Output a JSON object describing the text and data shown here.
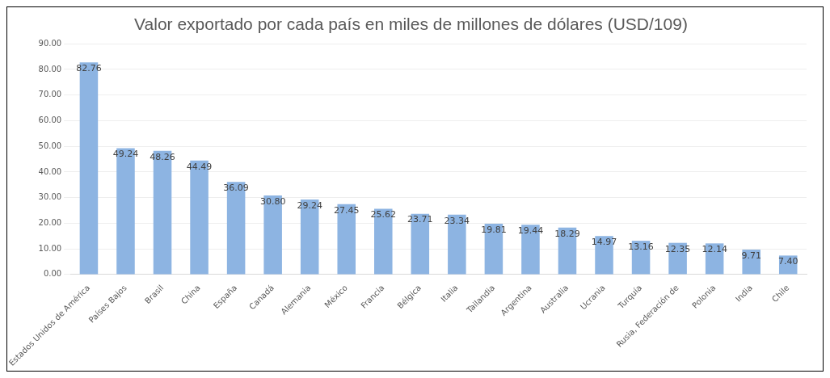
{
  "chart_data": {
    "type": "bar",
    "title": "Valor exportado por cada país en miles de millones de dólares (USD/109)",
    "categories": [
      "Estados Unidos de América",
      "Países Bajos",
      "Brasil",
      "China",
      "España",
      "Canadá",
      "Alemania",
      "México",
      "Francia",
      "Bélgica",
      "Italia",
      "Tailandia",
      "Argentina",
      "Australia",
      "Ucrania",
      "Turquía",
      "Rusia, Federación de",
      "Polonia",
      "India",
      "Chile"
    ],
    "values": [
      82.76,
      49.24,
      48.26,
      44.49,
      36.09,
      30.8,
      29.24,
      27.45,
      25.62,
      23.71,
      23.34,
      19.81,
      19.44,
      18.29,
      14.97,
      13.16,
      12.35,
      12.14,
      9.71,
      7.4
    ],
    "value_labels": [
      "82.76",
      "49.24",
      "48.26",
      "44.49",
      "36.09",
      "30.80",
      "29.24",
      "27.45",
      "25.62",
      "23.71",
      "23.34",
      "19.81",
      "19.44",
      "18.29",
      "14.97",
      "13.16",
      "12.35",
      "12.14",
      "9.71",
      "7.40"
    ],
    "color": "#8db4e2",
    "ylim": [
      0,
      90
    ],
    "yticks": [
      {
        "value": 0,
        "label": "0.00"
      },
      {
        "value": 10,
        "label": "10.00"
      },
      {
        "value": 20,
        "label": "20.00"
      },
      {
        "value": 30,
        "label": "30.00"
      },
      {
        "value": 40,
        "label": "40.00"
      },
      {
        "value": 50,
        "label": "50.00"
      },
      {
        "value": 60,
        "label": "60.00"
      },
      {
        "value": 70,
        "label": "70.00"
      },
      {
        "value": 80,
        "label": "80.00"
      },
      {
        "value": 90,
        "label": "90.00"
      }
    ],
    "grid": "y",
    "legend": false
  }
}
